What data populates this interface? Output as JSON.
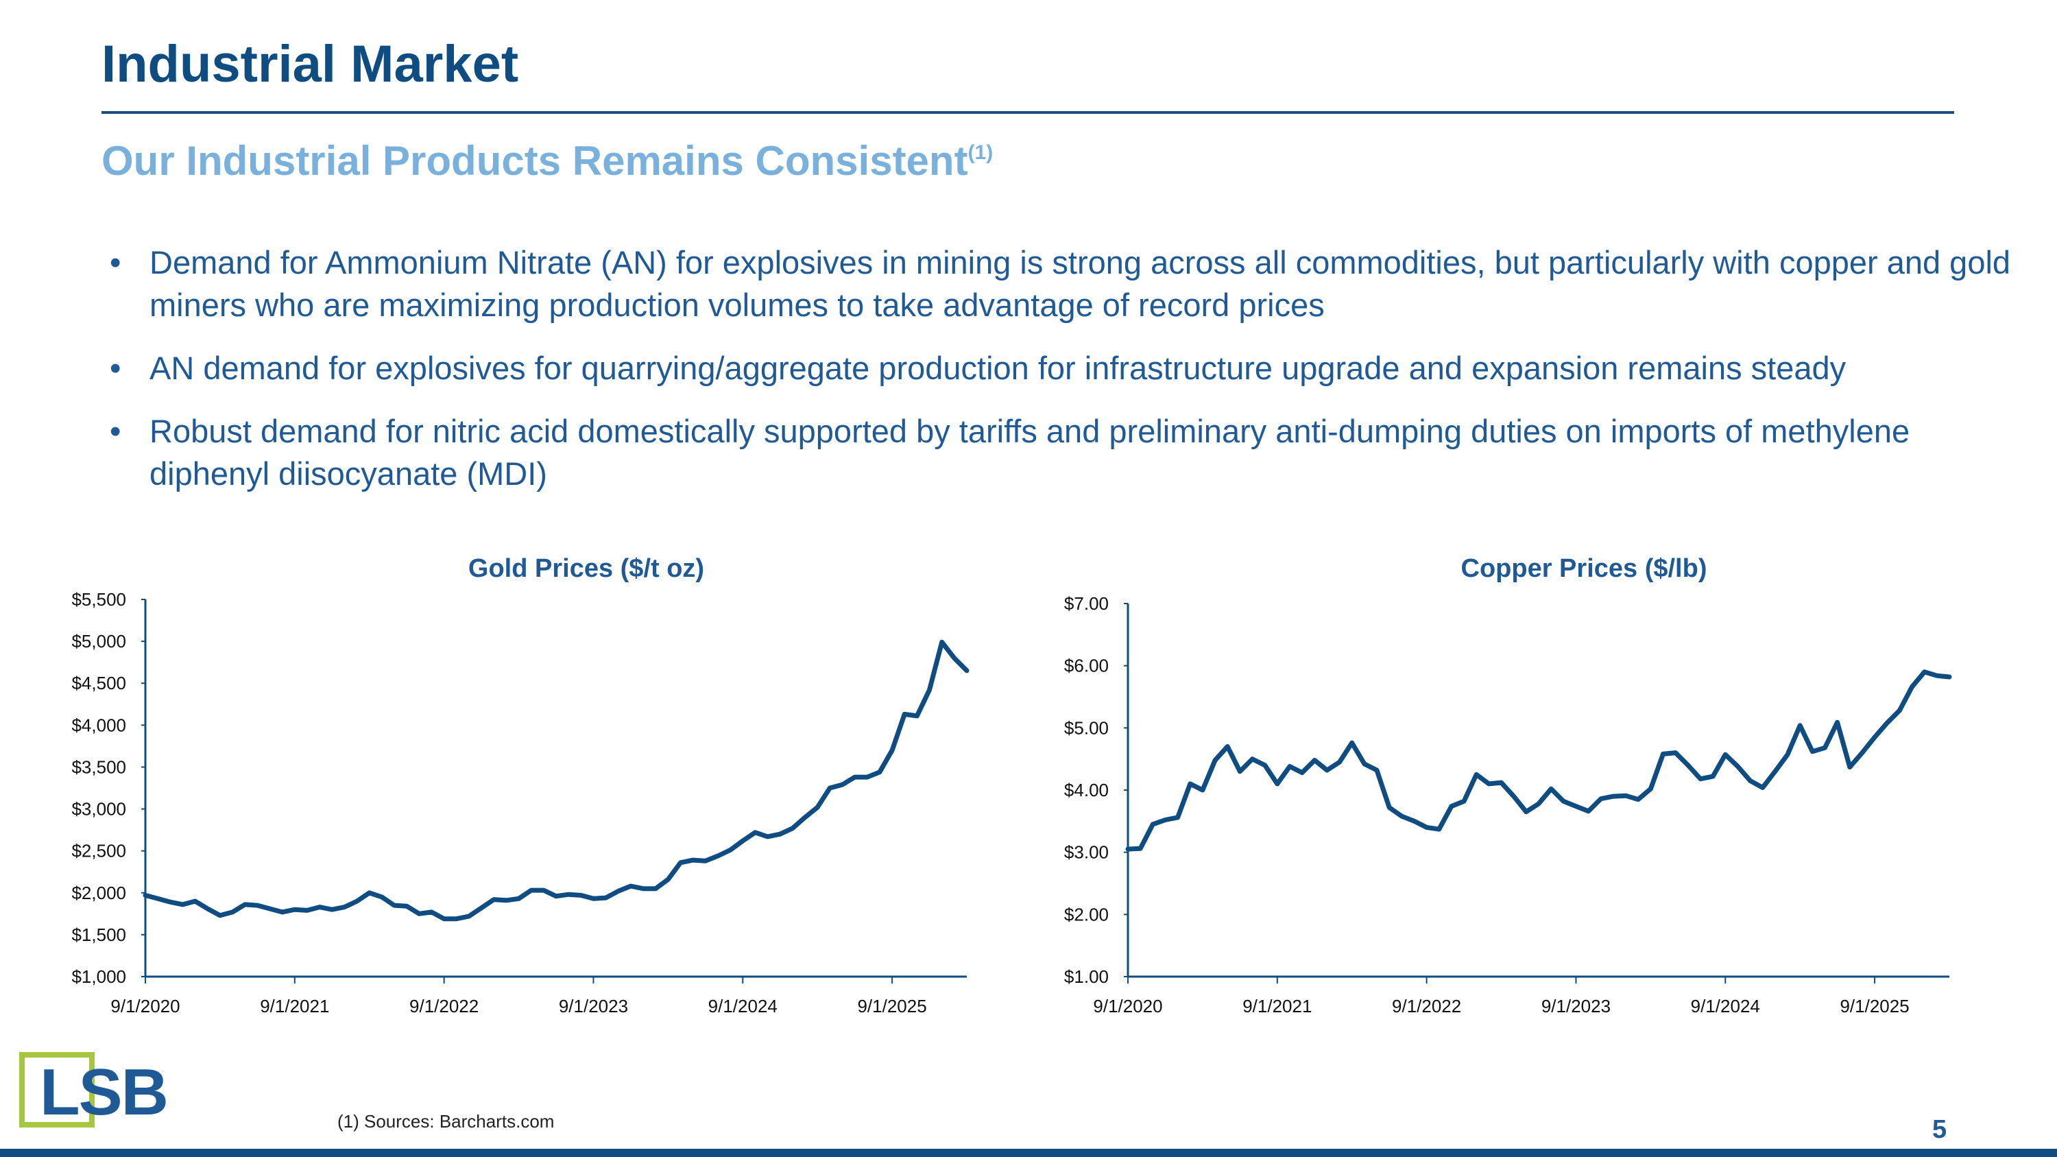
{
  "header": {
    "title": "Industrial Market",
    "subtitle": "Our Industrial Products Remains Consistent",
    "subtitle_note": "(1)"
  },
  "bullets": [
    "Demand for Ammonium Nitrate (AN) for explosives in mining is strong across all commodities, but particularly with copper and gold miners who are maximizing production volumes to take advantage of record prices",
    "AN demand for explosives for quarrying/aggregate production for infrastructure upgrade and expansion remains steady",
    "Robust demand for nitric acid domestically supported by tariffs and preliminary anti-dumping duties on imports of methylene diphenyl diisocyanate (MDI)"
  ],
  "bullet_symbol": "•",
  "chart_data": [
    {
      "type": "line",
      "title": "Gold Prices ($/t oz)",
      "xlabel": "",
      "ylabel": "",
      "ylim": [
        1000,
        5500
      ],
      "yticks": [
        1000,
        1500,
        2000,
        2500,
        3000,
        3500,
        4000,
        4500,
        5000,
        5500
      ],
      "ytick_labels": [
        "$1,000",
        "$1,500",
        "$2,000",
        "$2,500",
        "$3,000",
        "$3,500",
        "$4,000",
        "$4,500",
        "$5,000",
        "$5,500"
      ],
      "xticks": [
        0,
        12,
        24,
        36,
        48,
        60
      ],
      "xtick_labels": [
        "9/1/2020",
        "9/1/2021",
        "9/1/2022",
        "9/1/2023",
        "9/1/2024",
        "9/1/2025"
      ],
      "x_unit": "months since 9/1/2020",
      "xlim": [
        0,
        66
      ],
      "series": [
        {
          "name": "Gold",
          "color": "#0f4c81",
          "x": [
            0,
            1,
            2,
            3,
            4,
            5,
            6,
            7,
            8,
            9,
            10,
            11,
            12,
            13,
            14,
            15,
            16,
            17,
            18,
            19,
            20,
            21,
            22,
            23,
            24,
            25,
            26,
            27,
            28,
            29,
            30,
            31,
            32,
            33,
            34,
            35,
            36,
            37,
            38,
            39,
            40,
            41,
            42,
            43,
            44,
            45,
            46,
            47,
            48,
            49,
            50,
            51,
            52,
            53,
            54,
            55,
            56,
            57,
            58,
            59,
            60,
            61,
            62,
            63,
            64,
            65,
            66
          ],
          "values": [
            1970,
            1930,
            1890,
            1860,
            1900,
            1810,
            1730,
            1770,
            1860,
            1850,
            1810,
            1770,
            1800,
            1790,
            1830,
            1800,
            1830,
            1900,
            2000,
            1950,
            1850,
            1840,
            1750,
            1770,
            1690,
            1690,
            1720,
            1820,
            1920,
            1910,
            1930,
            2030,
            2030,
            1960,
            1980,
            1970,
            1930,
            1940,
            2020,
            2080,
            2050,
            2050,
            2160,
            2360,
            2390,
            2380,
            2440,
            2510,
            2620,
            2720,
            2670,
            2700,
            2770,
            2900,
            3020,
            3250,
            3290,
            3380,
            3380,
            3440,
            3700,
            4130,
            4110,
            4420,
            4990,
            4800,
            4650
          ]
        }
      ]
    },
    {
      "type": "line",
      "title": "Copper Prices ($/lb)",
      "xlabel": "",
      "ylabel": "",
      "ylim": [
        1,
        7
      ],
      "yticks": [
        1,
        2,
        3,
        4,
        5,
        6,
        7
      ],
      "ytick_labels": [
        "$1.00",
        "$2.00",
        "$3.00",
        "$4.00",
        "$5.00",
        "$6.00",
        "$7.00"
      ],
      "xticks": [
        0,
        12,
        24,
        36,
        48,
        60
      ],
      "xtick_labels": [
        "9/1/2020",
        "9/1/2021",
        "9/1/2022",
        "9/1/2023",
        "9/1/2024",
        "9/1/2025"
      ],
      "x_unit": "months since 9/1/2020",
      "xlim": [
        0,
        66
      ],
      "series": [
        {
          "name": "Copper",
          "color": "#0f4c81",
          "x": [
            0,
            1,
            2,
            3,
            4,
            5,
            6,
            7,
            8,
            9,
            10,
            11,
            12,
            13,
            14,
            15,
            16,
            17,
            18,
            19,
            20,
            21,
            22,
            23,
            24,
            25,
            26,
            27,
            28,
            29,
            30,
            31,
            32,
            33,
            34,
            35,
            36,
            37,
            38,
            39,
            40,
            41,
            42,
            43,
            44,
            45,
            46,
            47,
            48,
            49,
            50,
            51,
            52,
            53,
            54,
            55,
            56,
            57,
            58,
            59,
            60,
            61,
            62,
            63,
            64,
            65,
            66
          ],
          "values": [
            3.05,
            3.06,
            3.45,
            3.52,
            3.56,
            4.1,
            4.0,
            4.48,
            4.7,
            4.3,
            4.5,
            4.4,
            4.1,
            4.38,
            4.28,
            4.48,
            4.32,
            4.45,
            4.76,
            4.42,
            4.32,
            3.72,
            3.58,
            3.5,
            3.4,
            3.37,
            3.74,
            3.82,
            4.25,
            4.1,
            4.12,
            3.9,
            3.65,
            3.78,
            4.02,
            3.82,
            3.74,
            3.66,
            3.86,
            3.9,
            3.91,
            3.85,
            4.02,
            4.58,
            4.6,
            4.4,
            4.18,
            4.22,
            4.57,
            4.38,
            4.15,
            4.04,
            4.3,
            4.57,
            5.04,
            4.62,
            4.68,
            5.09,
            4.37,
            4.6,
            4.85,
            5.08,
            5.28,
            5.66,
            5.9,
            5.84,
            5.82
          ]
        }
      ]
    }
  ],
  "footer": {
    "logo_text": "LSB",
    "footnote": "(1)    Sources: Barcharts.com",
    "page_number": "5",
    "accent_color": "#0f4c81",
    "logo_box_color": "#a7c640"
  }
}
